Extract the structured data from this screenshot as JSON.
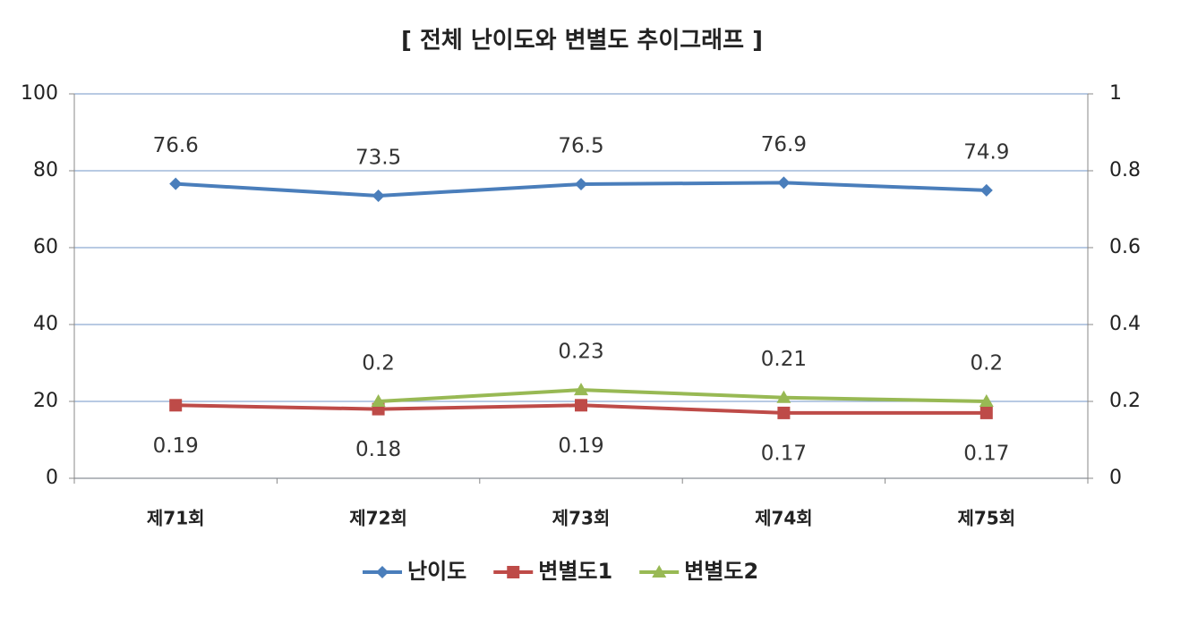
{
  "chart_data": {
    "type": "line",
    "title": "[ 전체 난이도와 변별도 추이그래프 ]",
    "categories": [
      "제71회",
      "제72회",
      "제73회",
      "제74회",
      "제75회"
    ],
    "series": [
      {
        "name": "난이도",
        "color": "#4a7ebb",
        "marker": "diamond",
        "label_position": "above",
        "values": [
          76.6,
          73.5,
          76.5,
          76.9,
          74.9
        ]
      },
      {
        "name": "변별도1",
        "color": "#be4b48",
        "marker": "square",
        "label_position": "below",
        "axis": "y2",
        "values": [
          0.19,
          0.18,
          0.19,
          0.17,
          0.17
        ]
      },
      {
        "name": "변별도2",
        "color": "#98b954",
        "marker": "triangle",
        "label_position": "above",
        "axis": "y2",
        "values": [
          null,
          0.2,
          0.23,
          0.21,
          0.2
        ]
      }
    ],
    "ylim": [
      0,
      100
    ],
    "yticks": [
      0,
      20,
      40,
      60,
      80,
      100
    ],
    "y2lim": [
      0,
      1
    ],
    "y2ticks": [
      0,
      0.2,
      0.4,
      0.6,
      0.8,
      1
    ],
    "grid": true,
    "legend": "bottom"
  }
}
